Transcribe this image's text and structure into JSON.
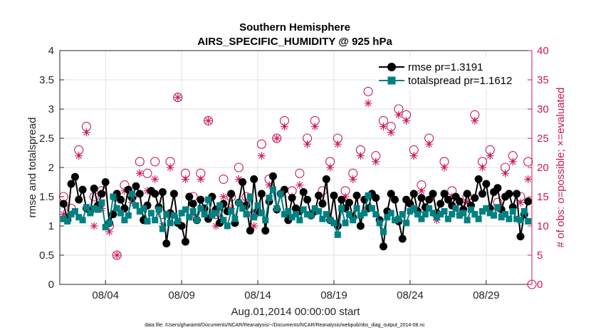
{
  "chart_data": {
    "type": "line",
    "title": [
      "Southern Hemisphere",
      "AIRS_SPECIFIC_HUMIDITY @ 925 hPa"
    ],
    "xlabel": "Aug.01,2014 00:00:00 start",
    "ylabel": "rmse and totalspread",
    "ylabel_right": "# of obs: o=possible; ×=evaluated",
    "footnote": "data file: /Users/gharamti/Documents/NCAR/Reanalysis/~/Documents/NCAR/Reanalysis/webpub/obs_diag_output_2014-08.nc",
    "x_ticks": [
      "08/04",
      "08/09",
      "08/14",
      "08/19",
      "08/24",
      "08/29"
    ],
    "x_tick_days": [
      4,
      9,
      14,
      19,
      24,
      29
    ],
    "xlim": [
      1.0,
      32.0
    ],
    "ylim": [
      0,
      4
    ],
    "y_ticks": [
      "0",
      "0.5",
      "1",
      "1.5",
      "2",
      "2.5",
      "3",
      "3.5",
      "4"
    ],
    "ylim_right": [
      0,
      40
    ],
    "y_ticks_right": [
      "0",
      "5",
      "10",
      "15",
      "20",
      "25",
      "30",
      "35",
      "40"
    ],
    "grid": true,
    "legend_position": "top-right",
    "colors": {
      "rmse": "#000000",
      "totalspread": "#008080",
      "obs": "#c8175d"
    },
    "series": [
      {
        "name": "rmse pr=1.3191",
        "marker": "circle",
        "x": [
          1.25,
          1.5,
          1.75,
          2.0,
          2.25,
          2.5,
          2.75,
          3.0,
          3.25,
          3.5,
          3.75,
          4.0,
          4.25,
          4.5,
          4.75,
          5.0,
          5.25,
          5.5,
          5.75,
          6.0,
          6.25,
          6.5,
          6.75,
          7.0,
          7.25,
          7.5,
          7.75,
          8.0,
          8.25,
          8.5,
          8.75,
          9.0,
          9.25,
          9.5,
          9.75,
          10.0,
          10.25,
          10.5,
          10.75,
          11.0,
          11.25,
          11.5,
          11.75,
          12.0,
          12.25,
          12.5,
          12.75,
          13.0,
          13.25,
          13.5,
          13.75,
          14.0,
          14.25,
          14.5,
          14.75,
          15.0,
          15.25,
          15.5,
          15.75,
          16.0,
          16.25,
          16.5,
          16.75,
          17.0,
          17.25,
          17.5,
          17.75,
          18.0,
          18.25,
          18.5,
          18.75,
          19.0,
          19.25,
          19.5,
          19.75,
          20.0,
          20.25,
          20.5,
          20.75,
          21.0,
          21.25,
          21.5,
          21.75,
          22.0,
          22.25,
          22.5,
          22.75,
          23.0,
          23.25,
          23.5,
          23.75,
          24.0,
          24.25,
          24.5,
          24.75,
          25.0,
          25.25,
          25.5,
          25.75,
          26.0,
          26.25,
          26.5,
          26.75,
          27.0,
          27.25,
          27.5,
          27.75,
          28.0,
          28.25,
          28.5,
          28.75,
          29.0,
          29.25,
          29.5,
          29.75,
          30.0,
          30.25,
          30.5,
          30.75,
          31.0,
          31.25,
          31.5,
          31.75
        ],
        "values": [
          1.38,
          1.1,
          1.72,
          1.84,
          1.45,
          1.62,
          1.3,
          1.25,
          1.64,
          1.35,
          1.55,
          1.75,
          1.05,
          1.2,
          1.55,
          1.45,
          1.3,
          1.62,
          1.48,
          1.68,
          1.55,
          1.1,
          1.35,
          1.6,
          1.55,
          1.32,
          1.58,
          0.7,
          1.22,
          1.55,
          1.05,
          1.0,
          0.73,
          1.5,
          1.38,
          1.1,
          1.45,
          1.3,
          1.12,
          1.5,
          1.28,
          1.05,
          1.38,
          1.25,
          1.55,
          1.05,
          1.4,
          1.75,
          1.35,
          0.92,
          1.8,
          1.25,
          1.55,
          0.92,
          1.42,
          1.85,
          1.28,
          1.55,
          1.62,
          1.1,
          1.48,
          1.3,
          1.25,
          1.58,
          1.45,
          1.18,
          1.25,
          1.52,
          1.38,
          1.8,
          1.1,
          1.52,
          1.0,
          1.45,
          1.3,
          1.4,
          1.15,
          1.52,
          1.0,
          1.45,
          1.3,
          1.55,
          1.48,
          1.1,
          0.65,
          1.25,
          1.55,
          1.45,
          1.08,
          0.78,
          1.45,
          1.38,
          1.55,
          1.25,
          1.48,
          1.32,
          1.45,
          1.55,
          1.22,
          1.38,
          1.55,
          1.45,
          1.35,
          1.5,
          1.42,
          1.28,
          1.55,
          1.35,
          1.48,
          1.8,
          1.55,
          1.72,
          1.3,
          1.58,
          1.65,
          1.28,
          1.5,
          1.55,
          1.32,
          1.55,
          0.82,
          1.2,
          1.42
        ]
      },
      {
        "name": "totalspread pr=1.1612",
        "marker": "square",
        "x": [
          1.25,
          1.5,
          1.75,
          2.0,
          2.25,
          2.5,
          2.75,
          3.0,
          3.25,
          3.5,
          3.75,
          4.0,
          4.25,
          4.5,
          4.75,
          5.0,
          5.25,
          5.5,
          5.75,
          6.0,
          6.25,
          6.5,
          6.75,
          7.0,
          7.25,
          7.5,
          7.75,
          8.0,
          8.25,
          8.5,
          8.75,
          9.0,
          9.25,
          9.5,
          9.75,
          10.0,
          10.25,
          10.5,
          10.75,
          11.0,
          11.25,
          11.5,
          11.75,
          12.0,
          12.25,
          12.5,
          12.75,
          13.0,
          13.25,
          13.5,
          13.75,
          14.0,
          14.25,
          14.5,
          14.75,
          15.0,
          15.25,
          15.5,
          15.75,
          16.0,
          16.25,
          16.5,
          16.75,
          17.0,
          17.25,
          17.5,
          17.75,
          18.0,
          18.25,
          18.5,
          18.75,
          19.0,
          19.25,
          19.5,
          19.75,
          20.0,
          20.25,
          20.5,
          20.75,
          21.0,
          21.25,
          21.5,
          21.75,
          22.0,
          22.25,
          22.5,
          22.75,
          23.0,
          23.25,
          23.5,
          23.75,
          24.0,
          24.25,
          24.5,
          24.75,
          25.0,
          25.25,
          25.5,
          25.75,
          26.0,
          26.25,
          26.5,
          26.75,
          27.0,
          27.25,
          27.5,
          27.75,
          28.0,
          28.25,
          28.5,
          28.75,
          29.0,
          29.25,
          29.5,
          29.75,
          30.0,
          30.25,
          30.5,
          30.75,
          31.0,
          31.25,
          31.5,
          31.75
        ],
        "values": [
          1.12,
          1.08,
          1.2,
          1.25,
          1.15,
          1.1,
          1.32,
          1.22,
          1.3,
          1.28,
          1.4,
          0.98,
          1.05,
          1.5,
          1.3,
          1.22,
          1.1,
          1.18,
          1.55,
          1.35,
          1.25,
          1.3,
          1.08,
          1.22,
          1.1,
          1.28,
          0.95,
          1.2,
          1.05,
          1.18,
          1.08,
          1.22,
          1.28,
          1.15,
          1.25,
          1.1,
          1.3,
          1.2,
          1.45,
          1.18,
          1.22,
          1.35,
          1.1,
          1.0,
          1.25,
          1.12,
          1.4,
          1.3,
          1.2,
          1.5,
          1.15,
          1.35,
          1.22,
          1.1,
          1.48,
          1.62,
          1.3,
          1.55,
          1.2,
          1.25,
          1.15,
          1.2,
          1.1,
          1.28,
          1.2,
          1.18,
          1.3,
          1.25,
          1.12,
          1.2,
          1.1,
          1.05,
          0.85,
          1.3,
          1.05,
          1.2,
          1.1,
          1.3,
          1.18,
          1.22,
          1.52,
          1.3,
          1.2,
          1.05,
          0.9,
          1.15,
          1.22,
          1.1,
          1.12,
          1.2,
          1.05,
          1.25,
          1.3,
          1.2,
          1.12,
          1.2,
          1.3,
          1.22,
          1.15,
          1.2,
          1.25,
          1.12,
          1.2,
          1.3,
          1.18,
          1.22,
          1.1,
          1.28,
          1.2,
          1.12,
          1.25,
          1.3,
          1.22,
          1.18,
          1.32,
          1.15,
          1.2,
          1.12,
          1.25,
          1.12,
          1.1,
          1.25,
          1.08
        ]
      },
      {
        "name": "# of obs possible",
        "marker": "open-circle",
        "axis": "right",
        "x": [
          1.25,
          1.75,
          2.25,
          2.75,
          3.25,
          3.75,
          4.25,
          4.75,
          5.25,
          5.75,
          6.25,
          6.75,
          7.25,
          7.75,
          8.25,
          8.75,
          9.25,
          9.75,
          10.25,
          10.75,
          11.25,
          11.75,
          12.25,
          12.75,
          13.25,
          13.75,
          14.25,
          14.75,
          15.25,
          15.75,
          16.25,
          16.75,
          17.25,
          17.75,
          18.25,
          18.75,
          19.25,
          19.75,
          20.25,
          20.75,
          21.25,
          21.75,
          22.25,
          22.75,
          23.25,
          23.75,
          24.25,
          24.75,
          25.25,
          25.75,
          26.25,
          26.75,
          27.25,
          27.75,
          28.25,
          28.75,
          29.25,
          29.75,
          30.25,
          30.75,
          31.25,
          31.75
        ],
        "values": [
          15,
          13,
          23,
          27,
          15,
          16,
          10,
          5,
          17,
          15,
          21,
          19,
          21,
          12,
          21,
          32,
          19,
          15,
          19,
          28,
          12,
          18,
          15,
          20,
          15,
          12,
          24,
          18,
          25,
          28,
          16,
          19,
          25,
          28,
          16,
          21,
          25,
          16,
          19,
          23,
          33,
          22,
          28,
          27,
          30,
          29,
          23,
          17,
          25,
          12,
          21,
          16,
          13,
          15,
          29,
          21,
          23,
          14,
          20,
          22,
          15,
          21
        ]
      },
      {
        "name": "# of obs evaluated",
        "marker": "star",
        "axis": "right",
        "x": [
          1.25,
          1.75,
          2.25,
          2.75,
          3.25,
          3.75,
          4.25,
          4.75,
          5.25,
          5.75,
          6.25,
          6.75,
          7.25,
          7.75,
          8.25,
          8.75,
          9.25,
          9.75,
          10.25,
          10.75,
          11.25,
          11.75,
          12.25,
          12.75,
          13.25,
          13.75,
          14.25,
          14.75,
          15.25,
          15.75,
          16.25,
          16.75,
          17.25,
          17.75,
          18.25,
          18.75,
          19.25,
          19.75,
          20.25,
          20.75,
          21.25,
          21.75,
          22.25,
          22.75,
          23.25,
          23.75,
          24.25,
          24.75,
          25.25,
          25.75,
          26.25,
          26.75,
          27.25,
          27.75,
          28.25,
          28.75,
          29.25,
          29.75,
          30.25,
          30.75,
          31.25,
          31.75
        ],
        "values": [
          12,
          12,
          22,
          26,
          10,
          13,
          9,
          5,
          16,
          14,
          19,
          16,
          18,
          10,
          20,
          32,
          18,
          12,
          18,
          28,
          10,
          15,
          13,
          18,
          14,
          10,
          22,
          17,
          25,
          27,
          15,
          17,
          24,
          27,
          14,
          20,
          24,
          15,
          18,
          22,
          31,
          21,
          27,
          26,
          29,
          28,
          22,
          16,
          24,
          11,
          20,
          15,
          12,
          14,
          28,
          20,
          22,
          13,
          19,
          21,
          14,
          18
        ]
      }
    ],
    "legend": [
      "rmse pr=1.3191",
      "totalspread pr=1.1612"
    ]
  }
}
